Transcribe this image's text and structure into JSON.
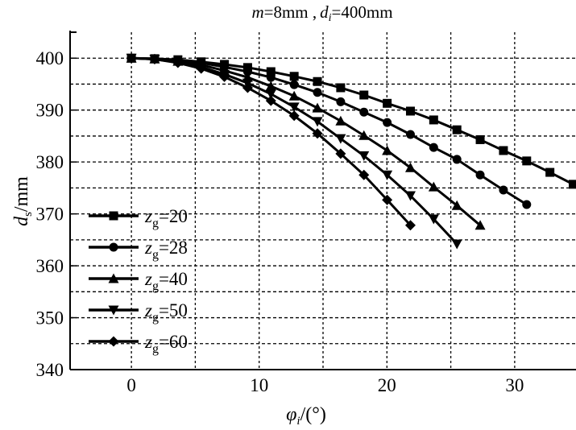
{
  "chart_data": {
    "type": "line",
    "title": {
      "m_label": "m",
      "m_value": "=8mm ,",
      "d_label": "d",
      "d_sub": "i",
      "d_value": "=400mm"
    },
    "xlabel": {
      "symbol": "φ",
      "sub": "i",
      "unit": "/(°)"
    },
    "ylabel": {
      "symbol": "d",
      "sub": "s",
      "unit": "/mm"
    },
    "xlim": [
      -4.8,
      34.8
    ],
    "ylim": [
      340,
      405
    ],
    "xticks": [
      0,
      10,
      20,
      30
    ],
    "yticks": [
      340,
      350,
      360,
      370,
      380,
      390,
      400
    ],
    "grid": {
      "on": true,
      "x_step": 5,
      "y_step": 5,
      "style": "dashed"
    },
    "legend_placement": "bottom-left",
    "x_step": 1.82,
    "series": [
      {
        "name": "zg=20",
        "label_main": "z",
        "label_sub": "g",
        "label_value": "=20",
        "marker": "square",
        "values": [
          400,
          399.9,
          399.7,
          399.3,
          398.8,
          398.2,
          397.4,
          396.5,
          395.5,
          394.3,
          392.9,
          391.3,
          389.8,
          388.1,
          386.2,
          384.3,
          382.2,
          380.2,
          378.0,
          375.7
        ]
      },
      {
        "name": "zg=28",
        "label_main": "z",
        "label_sub": "g",
        "label_value": "=28",
        "marker": "circle",
        "values": [
          400,
          399.9,
          399.6,
          399.1,
          398.3,
          397.4,
          396.3,
          394.9,
          393.4,
          391.6,
          389.6,
          387.6,
          385.3,
          382.8,
          380.5,
          377.5,
          374.6,
          371.8
        ]
      },
      {
        "name": "zg=40",
        "label_main": "z",
        "label_sub": "g",
        "label_value": "=40",
        "marker": "triangle-up",
        "values": [
          400,
          399.85,
          399.4,
          398.7,
          397.6,
          396.3,
          394.6,
          392.7,
          390.4,
          387.9,
          385.1,
          382.2,
          378.9,
          375.2,
          371.6,
          367.8
        ]
      },
      {
        "name": "zg=50",
        "label_main": "z",
        "label_sub": "g",
        "label_value": "=50",
        "marker": "triangle-down",
        "values": [
          400,
          399.8,
          399.2,
          398.3,
          396.9,
          395.2,
          393.1,
          390.6,
          387.8,
          384.5,
          381.2,
          377.5,
          373.5,
          369.0,
          364.2
        ]
      },
      {
        "name": "zg=60",
        "label_main": "z",
        "label_sub": "g",
        "label_value": "=60",
        "marker": "diamond",
        "values": [
          400,
          399.8,
          399.1,
          398.0,
          396.4,
          394.3,
          391.8,
          388.9,
          385.5,
          381.6,
          377.5,
          372.7,
          367.8
        ]
      }
    ],
    "colors": {
      "line": "#000000",
      "grid": "#000000"
    }
  }
}
